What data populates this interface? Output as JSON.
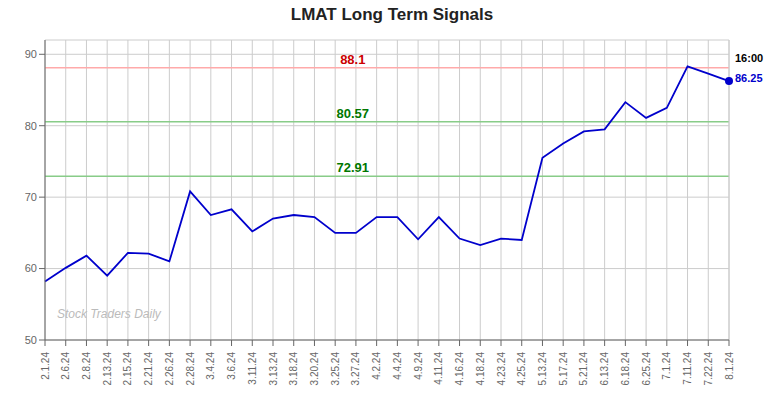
{
  "chart_data": {
    "type": "line",
    "title": "LMAT Long Term Signals",
    "categories": [
      "2.1.24",
      "2.6.24",
      "2.8.24",
      "2.13.24",
      "2.15.24",
      "2.21.24",
      "2.26.24",
      "2.28.24",
      "3.4.24",
      "3.6.24",
      "3.11.24",
      "3.13.24",
      "3.18.24",
      "3.20.24",
      "3.25.24",
      "3.27.24",
      "4.2.24",
      "4.4.24",
      "4.9.24",
      "4.11.24",
      "4.16.24",
      "4.18.24",
      "4.23.24",
      "4.25.24",
      "5.13.24",
      "5.17.24",
      "5.21.24",
      "6.13.24",
      "6.18.24",
      "6.25.24",
      "7.1.24",
      "7.11.24",
      "7.22.24",
      "8.1.24"
    ],
    "values": [
      58.2,
      60.1,
      61.8,
      59.0,
      62.2,
      62.1,
      61.0,
      70.8,
      67.5,
      68.3,
      65.2,
      67.0,
      67.5,
      67.2,
      65.0,
      65.0,
      67.2,
      67.2,
      64.1,
      67.2,
      64.2,
      63.3,
      64.2,
      64.0,
      75.5,
      77.5,
      79.2,
      79.5,
      83.3,
      81.1,
      82.5,
      88.3,
      87.3,
      86.25
    ],
    "color": "#0000cc",
    "ylim": [
      50,
      92
    ],
    "yticks": [
      50,
      60,
      70,
      80,
      90
    ],
    "grid": true,
    "hlines": [
      {
        "value": 88.1,
        "color": "#ffaaaa",
        "label_color": "#cc0000"
      },
      {
        "value": 80.57,
        "color": "#88cc88",
        "label_color": "#007700"
      },
      {
        "value": 72.91,
        "color": "#88cc88",
        "label_color": "#007700"
      }
    ],
    "annotations": [
      {
        "text": "16:00",
        "color": "#000000"
      },
      {
        "text": "86.25",
        "color": "#0000cc"
      }
    ],
    "watermark": {
      "text": "Stock Traders Daily",
      "color": "#bbbbbb"
    }
  }
}
